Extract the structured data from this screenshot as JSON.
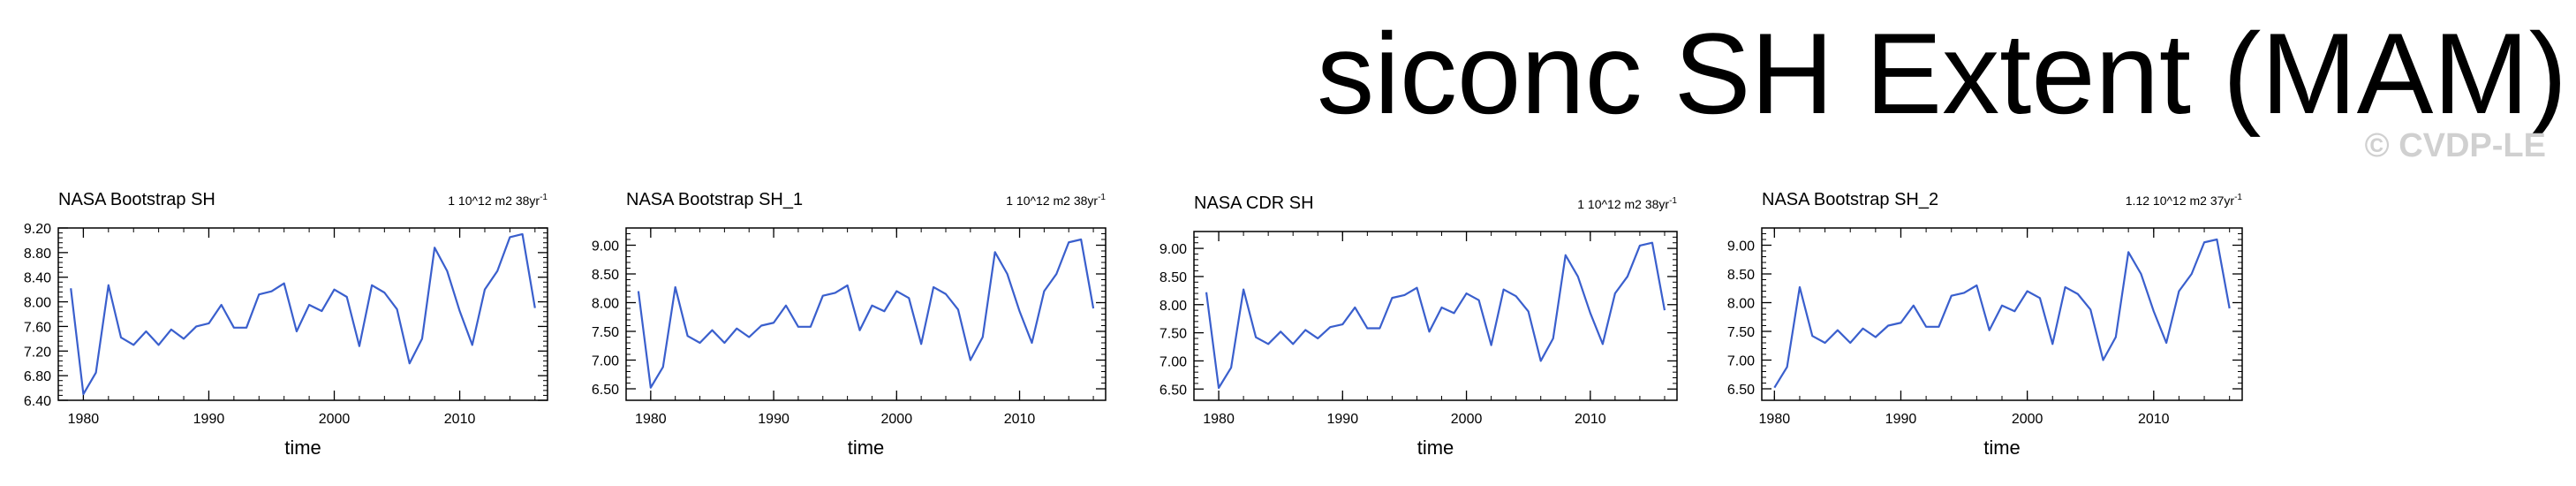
{
  "title": "siconc SH Extent (MAM)",
  "watermark": "© CVDP-LE",
  "colors": {
    "line": "#3a5fcd",
    "axis": "#000000",
    "watermark": "#d0d0d0"
  },
  "chart_data": [
    {
      "type": "line",
      "title": "NASA Bootstrap SH",
      "trend_text": "1 10^12 m2 38yr",
      "trend_exp": "-1",
      "xlabel": "time",
      "ylabel": "",
      "xlim": [
        1978,
        2017
      ],
      "ylim": [
        6.4,
        9.2
      ],
      "xticks": [
        1980,
        1990,
        2000,
        2010
      ],
      "yticks": [
        "6.40",
        "6.80",
        "7.20",
        "7.60",
        "8.00",
        "8.40",
        "8.80",
        "9.20"
      ],
      "grid": false,
      "x": [
        1979,
        1980,
        1981,
        1982,
        1983,
        1984,
        1985,
        1986,
        1987,
        1988,
        1989,
        1990,
        1991,
        1992,
        1993,
        1994,
        1995,
        1996,
        1997,
        1998,
        1999,
        2000,
        2001,
        2002,
        2003,
        2004,
        2005,
        2006,
        2007,
        2008,
        2009,
        2010,
        2011,
        2012,
        2013,
        2014,
        2015,
        2016
      ],
      "values": [
        8.22,
        6.5,
        6.85,
        8.27,
        7.42,
        7.3,
        7.52,
        7.3,
        7.55,
        7.4,
        7.6,
        7.65,
        7.95,
        7.58,
        7.58,
        8.12,
        8.17,
        8.3,
        7.52,
        7.95,
        7.85,
        8.2,
        8.08,
        7.28,
        8.27,
        8.15,
        7.88,
        7.0,
        7.4,
        8.88,
        8.5,
        7.85,
        7.3,
        8.2,
        8.5,
        9.05,
        9.1,
        7.9
      ]
    },
    {
      "type": "line",
      "title": "NASA Bootstrap SH_1",
      "trend_text": "1 10^12 m2 38yr",
      "trend_exp": "-1",
      "xlabel": "time",
      "ylabel": "",
      "xlim": [
        1978,
        2017
      ],
      "ylim": [
        6.3,
        9.3
      ],
      "xticks": [
        1980,
        1990,
        2000,
        2010
      ],
      "yticks": [
        "6.50",
        "7.00",
        "7.50",
        "8.00",
        "8.50",
        "9.00"
      ],
      "grid": false,
      "x": [
        1979,
        1980,
        1981,
        1982,
        1983,
        1984,
        1985,
        1986,
        1987,
        1988,
        1989,
        1990,
        1991,
        1992,
        1993,
        1994,
        1995,
        1996,
        1997,
        1998,
        1999,
        2000,
        2001,
        2002,
        2003,
        2004,
        2005,
        2006,
        2007,
        2008,
        2009,
        2010,
        2011,
        2012,
        2013,
        2014,
        2015,
        2016
      ],
      "values": [
        8.2,
        6.52,
        6.88,
        8.27,
        7.42,
        7.3,
        7.52,
        7.3,
        7.55,
        7.4,
        7.6,
        7.65,
        7.95,
        7.58,
        7.58,
        8.12,
        8.17,
        8.3,
        7.52,
        7.95,
        7.85,
        8.2,
        8.08,
        7.28,
        8.27,
        8.15,
        7.88,
        7.0,
        7.4,
        8.88,
        8.5,
        7.85,
        7.3,
        8.2,
        8.5,
        9.05,
        9.1,
        7.9
      ]
    },
    {
      "type": "line",
      "title": "NASA CDR SH",
      "trend_text": "1 10^12 m2 38yr",
      "trend_exp": "-1",
      "xlabel": "time",
      "ylabel": "",
      "xlim": [
        1978,
        2017
      ],
      "ylim": [
        6.3,
        9.3
      ],
      "xticks": [
        1980,
        1990,
        2000,
        2010
      ],
      "yticks": [
        "6.50",
        "7.00",
        "7.50",
        "8.00",
        "8.50",
        "9.00"
      ],
      "grid": false,
      "x": [
        1979,
        1980,
        1981,
        1982,
        1983,
        1984,
        1985,
        1986,
        1987,
        1988,
        1989,
        1990,
        1991,
        1992,
        1993,
        1994,
        1995,
        1996,
        1997,
        1998,
        1999,
        2000,
        2001,
        2002,
        2003,
        2004,
        2005,
        2006,
        2007,
        2008,
        2009,
        2010,
        2011,
        2012,
        2013,
        2014,
        2015,
        2016
      ],
      "values": [
        8.22,
        6.52,
        6.88,
        8.27,
        7.42,
        7.3,
        7.52,
        7.3,
        7.55,
        7.4,
        7.6,
        7.65,
        7.95,
        7.58,
        7.58,
        8.12,
        8.17,
        8.3,
        7.52,
        7.95,
        7.85,
        8.2,
        8.08,
        7.28,
        8.27,
        8.15,
        7.88,
        7.0,
        7.4,
        8.88,
        8.5,
        7.85,
        7.3,
        8.2,
        8.5,
        9.05,
        9.1,
        7.9
      ]
    },
    {
      "type": "line",
      "title": "NASA Bootstrap SH_2",
      "trend_text": "1.12 10^12 m2 37yr",
      "trend_exp": "-1",
      "xlabel": "time",
      "ylabel": "",
      "xlim": [
        1979,
        2017
      ],
      "ylim": [
        6.3,
        9.3
      ],
      "xticks": [
        1980,
        1990,
        2000,
        2010
      ],
      "yticks": [
        "6.50",
        "7.00",
        "7.50",
        "8.00",
        "8.50",
        "9.00"
      ],
      "grid": false,
      "x": [
        1980,
        1981,
        1982,
        1983,
        1984,
        1985,
        1986,
        1987,
        1988,
        1989,
        1990,
        1991,
        1992,
        1993,
        1994,
        1995,
        1996,
        1997,
        1998,
        1999,
        2000,
        2001,
        2002,
        2003,
        2004,
        2005,
        2006,
        2007,
        2008,
        2009,
        2010,
        2011,
        2012,
        2013,
        2014,
        2015,
        2016
      ],
      "values": [
        6.52,
        6.88,
        8.27,
        7.42,
        7.3,
        7.52,
        7.3,
        7.55,
        7.4,
        7.6,
        7.65,
        7.95,
        7.58,
        7.58,
        8.12,
        8.17,
        8.3,
        7.52,
        7.95,
        7.85,
        8.2,
        8.08,
        7.28,
        8.27,
        8.15,
        7.88,
        7.0,
        7.4,
        8.88,
        8.5,
        7.85,
        7.3,
        8.2,
        8.5,
        9.05,
        9.1,
        7.9
      ]
    }
  ]
}
